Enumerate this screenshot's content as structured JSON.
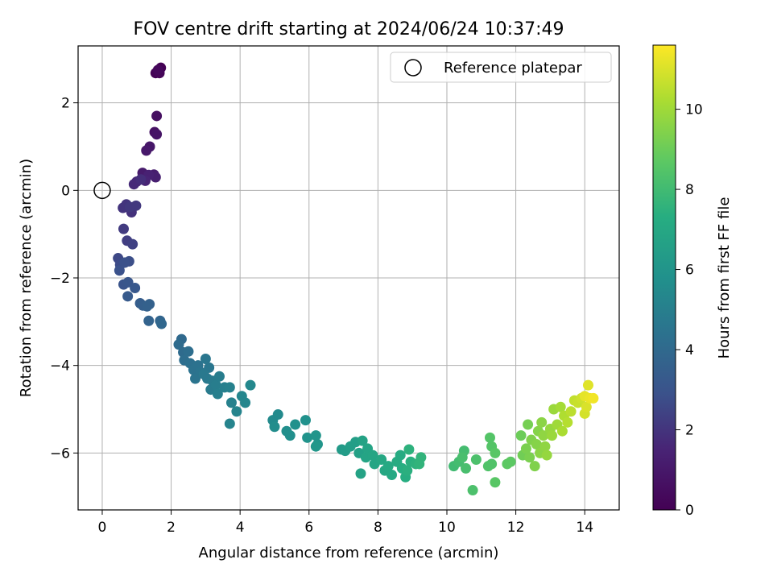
{
  "chart_data": {
    "type": "scatter",
    "title": "FOV centre drift starting at 2024/06/24 10:37:49",
    "xlabel": "Angular distance from reference (arcmin)",
    "ylabel": "Rotation from reference (arcmin)",
    "xlim": [
      -0.7,
      15.0
    ],
    "ylim": [
      -7.3,
      3.3
    ],
    "xticks": [
      0,
      2,
      4,
      6,
      8,
      10,
      12,
      14
    ],
    "yticks": [
      -6,
      -4,
      -2,
      0,
      2
    ],
    "grid": true,
    "legend": {
      "placement": "top-right",
      "entries": [
        "Reference platepar"
      ]
    },
    "reference_point": {
      "x": 0,
      "y": 0
    },
    "colorbar": {
      "label": "Hours from first FF file",
      "range": [
        0,
        11.6
      ],
      "ticks": [
        0,
        2,
        4,
        6,
        8,
        10
      ],
      "colormap": "viridis"
    },
    "series": [
      {
        "points": [
          [
            1.7,
            2.8,
            0.0
          ],
          [
            1.55,
            2.68,
            0.1
          ],
          [
            1.66,
            2.68,
            0.2
          ],
          [
            1.62,
            2.75,
            0.3
          ],
          [
            1.58,
            1.7,
            0.6
          ],
          [
            1.52,
            1.33,
            0.7
          ],
          [
            1.58,
            1.28,
            0.8
          ],
          [
            1.38,
            1.0,
            0.9
          ],
          [
            1.28,
            0.91,
            1.0
          ],
          [
            1.17,
            0.4,
            1.1
          ],
          [
            1.5,
            0.36,
            1.2
          ],
          [
            1.55,
            0.3,
            1.3
          ],
          [
            1.35,
            0.35,
            1.4
          ],
          [
            1.25,
            0.22,
            1.5
          ],
          [
            1.0,
            0.2,
            1.6
          ],
          [
            0.92,
            0.14,
            1.7
          ],
          [
            1.12,
            0.25,
            1.8
          ],
          [
            0.85,
            -0.5,
            1.9
          ],
          [
            0.7,
            -0.32,
            2.0
          ],
          [
            0.6,
            -0.4,
            2.0
          ],
          [
            0.98,
            -0.35,
            2.1
          ],
          [
            0.8,
            -0.38,
            2.1
          ],
          [
            0.62,
            -0.88,
            2.2
          ],
          [
            0.72,
            -1.15,
            2.3
          ],
          [
            0.88,
            -1.23,
            2.4
          ],
          [
            0.46,
            -1.55,
            2.6
          ],
          [
            0.52,
            -1.7,
            2.7
          ],
          [
            0.78,
            -1.62,
            2.8
          ],
          [
            0.5,
            -1.83,
            2.9
          ],
          [
            0.65,
            -1.65,
            2.9
          ],
          [
            0.62,
            -2.15,
            3.0
          ],
          [
            0.75,
            -2.1,
            3.1
          ],
          [
            0.95,
            -2.23,
            3.2
          ],
          [
            0.74,
            -2.42,
            3.3
          ],
          [
            1.1,
            -2.58,
            3.4
          ],
          [
            1.18,
            -2.63,
            3.5
          ],
          [
            1.37,
            -2.6,
            3.6
          ],
          [
            1.3,
            -2.65,
            3.6
          ],
          [
            1.35,
            -2.98,
            3.7
          ],
          [
            1.68,
            -2.98,
            3.8
          ],
          [
            1.72,
            -3.05,
            3.9
          ],
          [
            2.3,
            -3.4,
            4.0
          ],
          [
            2.22,
            -3.52,
            4.1
          ],
          [
            2.35,
            -3.7,
            4.1
          ],
          [
            2.5,
            -3.68,
            4.2
          ],
          [
            2.38,
            -3.88,
            4.2
          ],
          [
            2.55,
            -3.95,
            4.3
          ],
          [
            2.65,
            -4.1,
            4.4
          ],
          [
            2.78,
            -4.0,
            4.4
          ],
          [
            2.85,
            -4.15,
            4.5
          ],
          [
            2.7,
            -4.3,
            4.5
          ],
          [
            3.0,
            -3.85,
            4.6
          ],
          [
            3.1,
            -4.05,
            4.6
          ],
          [
            2.95,
            -4.2,
            4.7
          ],
          [
            3.05,
            -4.3,
            4.7
          ],
          [
            3.2,
            -4.35,
            4.8
          ],
          [
            3.15,
            -4.55,
            4.8
          ],
          [
            3.3,
            -4.45,
            4.9
          ],
          [
            3.4,
            -4.25,
            4.9
          ],
          [
            3.55,
            -4.5,
            5.0
          ],
          [
            3.35,
            -4.65,
            5.0
          ],
          [
            3.7,
            -4.5,
            5.1
          ],
          [
            3.75,
            -4.85,
            5.1
          ],
          [
            3.7,
            -5.33,
            5.2
          ],
          [
            3.9,
            -5.05,
            5.2
          ],
          [
            4.05,
            -4.7,
            5.3
          ],
          [
            4.15,
            -4.85,
            5.3
          ],
          [
            4.3,
            -4.45,
            5.4
          ],
          [
            4.95,
            -5.25,
            5.5
          ],
          [
            5.1,
            -5.12,
            5.5
          ],
          [
            5.0,
            -5.4,
            5.6
          ],
          [
            5.35,
            -5.5,
            5.7
          ],
          [
            5.45,
            -5.6,
            5.7
          ],
          [
            5.6,
            -5.35,
            5.8
          ],
          [
            5.9,
            -5.25,
            5.8
          ],
          [
            5.95,
            -5.65,
            5.9
          ],
          [
            6.2,
            -5.6,
            6.0
          ],
          [
            6.25,
            -5.8,
            6.0
          ],
          [
            6.2,
            -5.85,
            6.1
          ],
          [
            6.95,
            -5.92,
            6.3
          ],
          [
            7.05,
            -5.95,
            6.4
          ],
          [
            7.2,
            -5.85,
            6.5
          ],
          [
            7.35,
            -5.75,
            6.5
          ],
          [
            7.45,
            -6.0,
            6.6
          ],
          [
            7.55,
            -5.72,
            6.7
          ],
          [
            7.5,
            -6.47,
            6.7
          ],
          [
            7.65,
            -6.1,
            6.8
          ],
          [
            7.7,
            -5.9,
            6.8
          ],
          [
            7.85,
            -6.05,
            6.9
          ],
          [
            7.9,
            -6.25,
            6.9
          ],
          [
            8.1,
            -6.15,
            7.0
          ],
          [
            8.2,
            -6.4,
            7.0
          ],
          [
            8.3,
            -6.3,
            7.1
          ],
          [
            8.4,
            -6.5,
            7.1
          ],
          [
            8.55,
            -6.2,
            7.2
          ],
          [
            8.65,
            -6.05,
            7.2
          ],
          [
            8.7,
            -6.35,
            7.3
          ],
          [
            8.8,
            -6.55,
            7.3
          ],
          [
            8.85,
            -6.4,
            7.4
          ],
          [
            8.95,
            -6.2,
            7.4
          ],
          [
            8.9,
            -5.92,
            7.5
          ],
          [
            9.1,
            -6.25,
            7.5
          ],
          [
            9.25,
            -6.1,
            7.6
          ],
          [
            9.2,
            -6.25,
            7.6
          ],
          [
            10.2,
            -6.3,
            8.0
          ],
          [
            10.35,
            -6.2,
            8.1
          ],
          [
            10.5,
            -5.95,
            8.1
          ],
          [
            10.45,
            -6.1,
            8.2
          ],
          [
            10.55,
            -6.35,
            8.2
          ],
          [
            10.75,
            -6.85,
            8.3
          ],
          [
            10.85,
            -6.15,
            8.3
          ],
          [
            11.2,
            -6.3,
            8.4
          ],
          [
            11.3,
            -6.25,
            8.4
          ],
          [
            11.25,
            -5.65,
            8.5
          ],
          [
            11.3,
            -5.85,
            8.5
          ],
          [
            11.4,
            -6.0,
            8.6
          ],
          [
            11.4,
            -6.67,
            8.6
          ],
          [
            11.75,
            -6.25,
            8.7
          ],
          [
            11.85,
            -6.2,
            8.7
          ],
          [
            12.15,
            -5.6,
            9.0
          ],
          [
            12.2,
            -6.05,
            9.1
          ],
          [
            12.35,
            -5.35,
            9.2
          ],
          [
            12.3,
            -5.9,
            9.3
          ],
          [
            12.4,
            -6.1,
            9.3
          ],
          [
            12.45,
            -5.7,
            9.4
          ],
          [
            12.55,
            -6.3,
            9.4
          ],
          [
            12.6,
            -5.8,
            9.5
          ],
          [
            12.65,
            -5.5,
            9.5
          ],
          [
            12.75,
            -5.3,
            9.6
          ],
          [
            12.7,
            -6.0,
            9.6
          ],
          [
            12.8,
            -5.6,
            9.7
          ],
          [
            12.85,
            -5.85,
            9.7
          ],
          [
            12.9,
            -6.05,
            9.8
          ],
          [
            13.0,
            -5.45,
            9.8
          ],
          [
            13.05,
            -5.6,
            9.9
          ],
          [
            13.1,
            -5.0,
            9.9
          ],
          [
            13.2,
            -5.35,
            10.0
          ],
          [
            13.3,
            -4.95,
            10.1
          ],
          [
            13.35,
            -5.5,
            10.2
          ],
          [
            13.4,
            -5.15,
            10.3
          ],
          [
            13.5,
            -5.3,
            10.4
          ],
          [
            13.6,
            -5.05,
            10.5
          ],
          [
            13.7,
            -4.8,
            10.6
          ],
          [
            13.8,
            -4.85,
            10.7
          ],
          [
            13.9,
            -4.75,
            10.8
          ],
          [
            14.0,
            -5.1,
            10.9
          ],
          [
            14.05,
            -4.95,
            11.0
          ],
          [
            14.1,
            -4.45,
            11.1
          ],
          [
            14.0,
            -4.7,
            11.2
          ],
          [
            14.15,
            -4.75,
            11.3
          ],
          [
            14.25,
            -4.75,
            11.4
          ]
        ]
      }
    ]
  }
}
